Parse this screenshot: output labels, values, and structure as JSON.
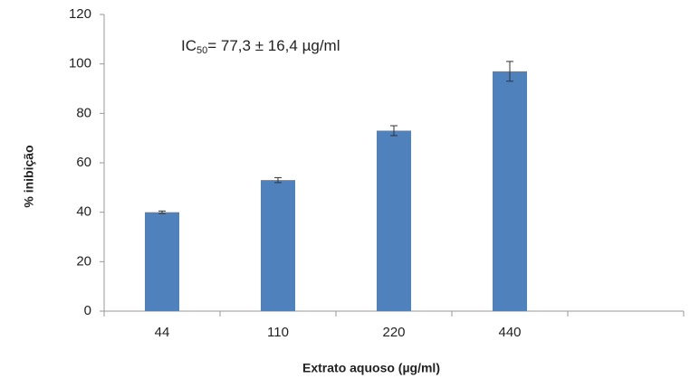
{
  "chart_data": {
    "type": "bar",
    "annotation": [
      "IC",
      "50",
      "= 77,3 ± 16,4 µg/ml"
    ],
    "xlabel": "Extrato aquoso (µg/ml)",
    "ylabel": "% inibição",
    "categories": [
      "44",
      "110",
      "220",
      "440",
      null
    ],
    "values": [
      40,
      53,
      73,
      97,
      null
    ],
    "errors": [
      0.5,
      1,
      2,
      4,
      null
    ],
    "color": "#4f81bd",
    "ylim": [
      0,
      120
    ],
    "yticks": [
      0,
      20,
      40,
      60,
      80,
      100,
      120
    ],
    "grid": false
  }
}
